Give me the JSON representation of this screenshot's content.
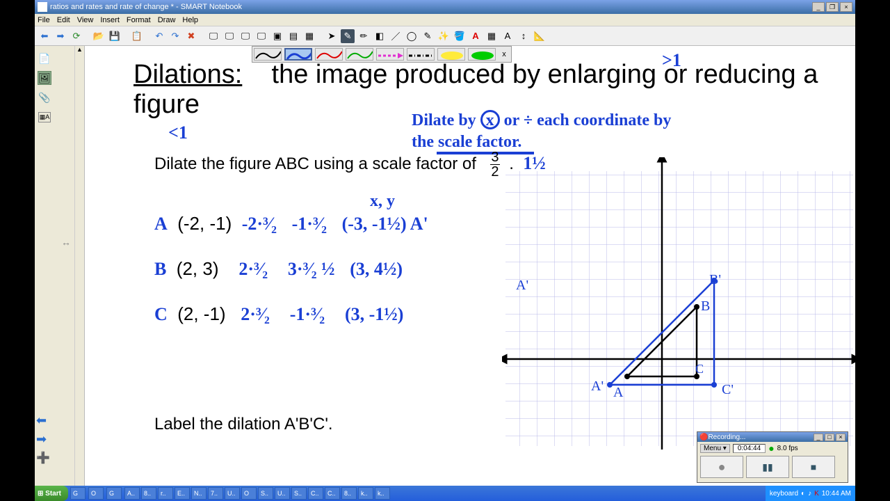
{
  "window": {
    "title": "ratios and rates and rate of change * - SMART Notebook",
    "menus": [
      "File",
      "Edit",
      "View",
      "Insert",
      "Format",
      "Draw",
      "Help"
    ]
  },
  "pen_toolbar": {
    "close": "x",
    "pens": [
      {
        "color": "#000",
        "style": "solid"
      },
      {
        "color": "#1a3fd4",
        "style": "solid",
        "selected": true
      },
      {
        "color": "#d00",
        "style": "solid"
      },
      {
        "color": "#0a0",
        "style": "solid"
      },
      {
        "color": "#e030d0",
        "style": "dashed"
      },
      {
        "color": "#000",
        "style": "dashdot"
      },
      {
        "color": "#ffeb3b",
        "style": "highlight"
      },
      {
        "color": "#0c0",
        "style": "highlight"
      }
    ]
  },
  "lesson": {
    "heading": "Dilations:",
    "definition": "the image produced by enlarging or reducing a figure",
    "instruction": "Dilate the figure ABC using a scale factor of",
    "scale_num": "3",
    "scale_den": "2",
    "bottom": "Label the dilation A'B'C'.",
    "hand_gt1": ">1",
    "hand_lt1": "<1",
    "hand_onehalf": "1½",
    "hand_hint": "Dilate by  ⊗ or ÷ each coordinate by the scale factor.",
    "hand_hint_part1": "Dilate by",
    "hand_hint_x": "x",
    "hand_hint_part2": "or ÷ each coordinate by",
    "hand_hint_line2": "the scale factor.",
    "xy_label": "x, y",
    "pts": [
      {
        "name": "A",
        "orig": "(-2, -1)",
        "c1": "-2·³⁄₂",
        "c2": "-1·³⁄₂",
        "res": "(-3, -1½) A'"
      },
      {
        "name": "B",
        "orig": "(2, 3)",
        "c1": "2·³⁄₂",
        "c2": "3·³⁄₂ ½",
        "res": "(3, 4½)"
      },
      {
        "name": "C",
        "orig": "(2, -1)",
        "c1": "2·³⁄₂",
        "c2": "-1·³⁄₂",
        "res": "(3, -1½)"
      }
    ]
  },
  "recording": {
    "title": "Recording...",
    "menu_label": "Menu ▾",
    "time": "0:04:44",
    "fps": "8.0 fps"
  },
  "taskbar": {
    "start": "Start",
    "items": [
      "G",
      "O",
      "G",
      "A..",
      "8..",
      "r..",
      "E..",
      "N..",
      "7..",
      "U..",
      "O",
      "S..",
      "U..",
      "S..",
      "C..",
      "C..",
      "8..",
      "k..",
      "k.."
    ],
    "tray_label": "keyboard",
    "clock": "10:44 AM"
  },
  "styling": {
    "hand_color": "#1a3fd4",
    "grid_color": "#b8b8e8",
    "axis_color": "#000",
    "triangle1": {
      "A": [
        -2,
        -1
      ],
      "B": [
        2,
        3
      ],
      "C": [
        2,
        -1
      ]
    },
    "triangle2": {
      "A": [
        -3,
        -1.5
      ],
      "B": [
        3,
        4.5
      ],
      "C": [
        3,
        -1.5
      ]
    },
    "grid": {
      "xlim": [
        -10,
        10
      ],
      "ylim": [
        -5,
        10
      ],
      "cell": 25
    }
  }
}
